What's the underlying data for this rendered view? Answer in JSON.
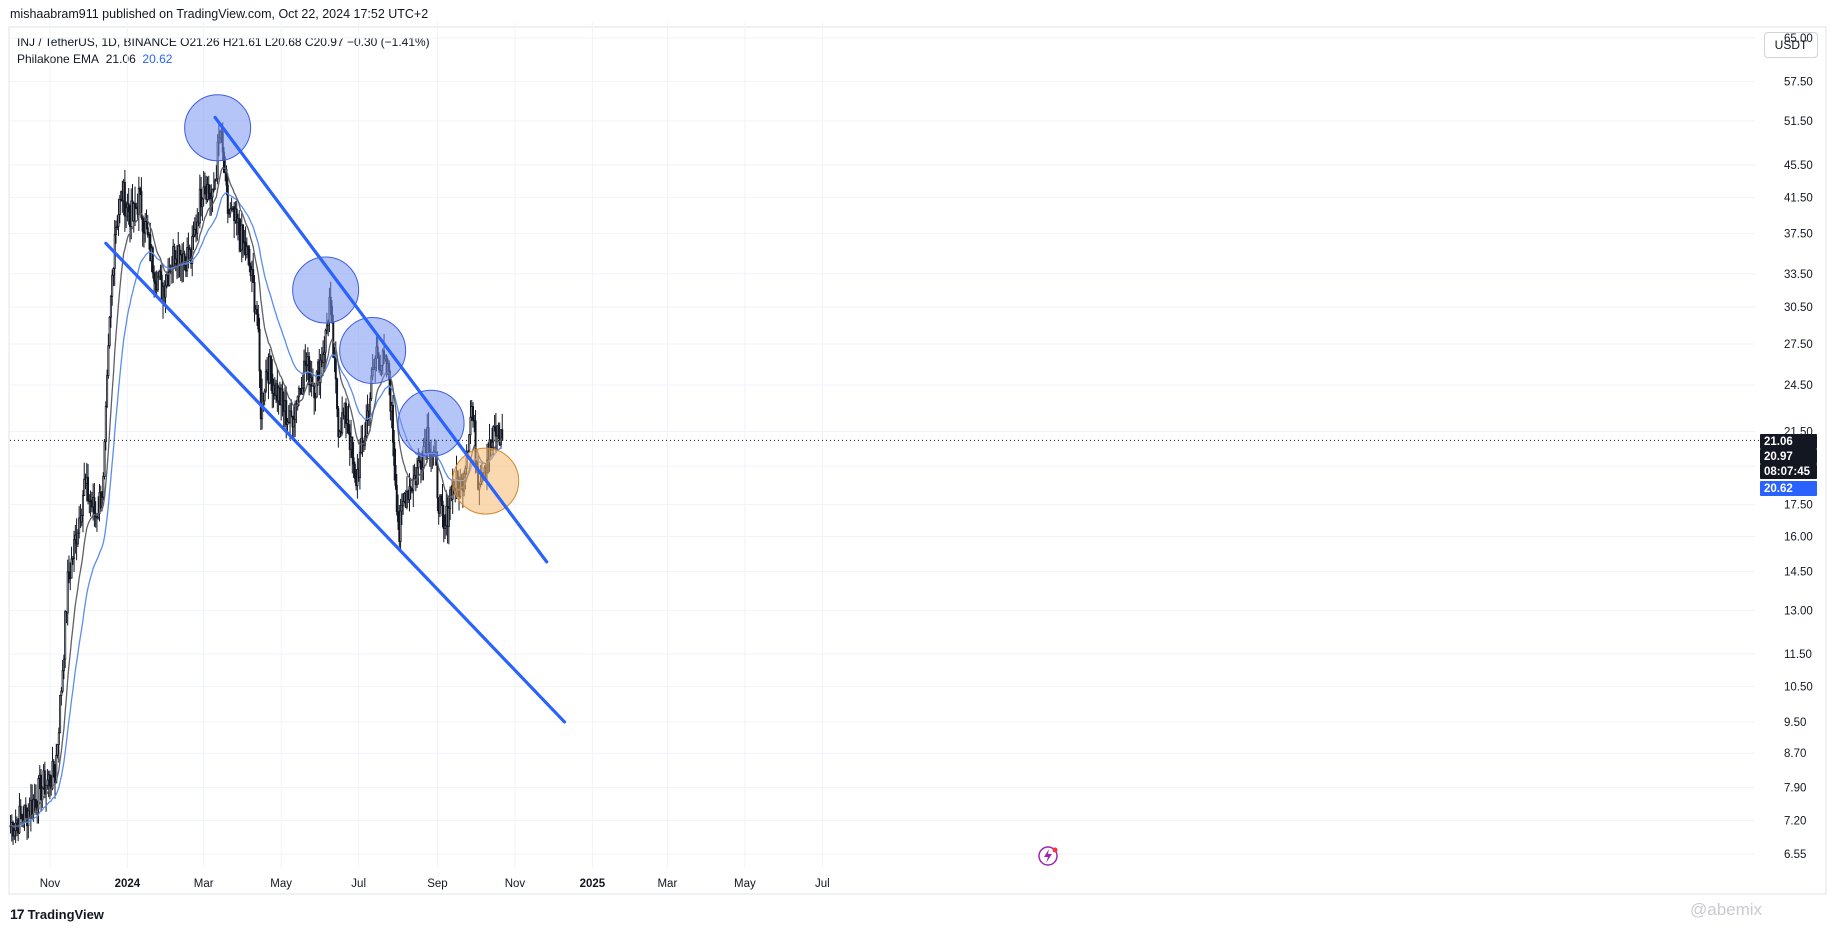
{
  "header": {
    "published": "mishaabram911 published on TradingView.com, Oct 22, 2024 17:52 UTC+2"
  },
  "legend": {
    "symbol_line": "INJ / TetherUS, 1D, BINANCE  O21.26  H21.61  L20.68  C20.97  −0.30 (−1.41%)",
    "indicator_name": "Philakone EMA",
    "ema_fast": "21.06",
    "ema_slow": "20.62"
  },
  "currency_button": "USDT",
  "footer": {
    "logo_text": "TradingView",
    "watermark": "@abemix"
  },
  "colors": {
    "candle": "#131722",
    "ema_fast": "#5d606b",
    "ema_slow": "#5b8def",
    "trendline": "#2962ff",
    "circle_blue": "#7a95f0",
    "circle_orange": "#f5b971",
    "price_label_bg": "#131722",
    "ema_label_bg": "#2962ff"
  },
  "chart_data": {
    "type": "candlestick",
    "x_axis_labels": [
      "Nov",
      "2024",
      "Mar",
      "May",
      "Jul",
      "Sep",
      "Nov",
      "2025",
      "Mar",
      "May",
      "Jul"
    ],
    "y_scale": "log",
    "y_ticks": [
      "65.00",
      "57.50",
      "51.50",
      "45.50",
      "41.50",
      "37.50",
      "33.50",
      "30.50",
      "27.50",
      "24.50",
      "21.50",
      "19.50",
      "17.50",
      "16.00",
      "14.50",
      "13.00",
      "11.50",
      "10.50",
      "9.50",
      "8.70",
      "7.90",
      "7.20",
      "6.55"
    ],
    "ylim": [
      6.3,
      68
    ],
    "price_labels": {
      "ema_fast": "21.06",
      "close": "20.97",
      "countdown": "08:07:45",
      "ema_slow": "20.62"
    },
    "price_path": [
      [
        "2023-10-01",
        7.1
      ],
      [
        "2023-10-15",
        7.4
      ],
      [
        "2023-10-25",
        7.9
      ],
      [
        "2023-11-05",
        8.2
      ],
      [
        "2023-11-10",
        10.5
      ],
      [
        "2023-11-15",
        14.0
      ],
      [
        "2023-11-20",
        15.5
      ],
      [
        "2023-11-28",
        18.5
      ],
      [
        "2023-12-07",
        17.0
      ],
      [
        "2023-12-13",
        18.5
      ],
      [
        "2023-12-18",
        29.0
      ],
      [
        "2023-12-22",
        38.0
      ],
      [
        "2023-12-28",
        42.0
      ],
      [
        "2024-01-05",
        39.0
      ],
      [
        "2024-01-10",
        41.5
      ],
      [
        "2024-01-20",
        35.0
      ],
      [
        "2024-01-28",
        32.0
      ],
      [
        "2024-02-08",
        36.0
      ],
      [
        "2024-02-20",
        35.0
      ],
      [
        "2024-03-01",
        44.0
      ],
      [
        "2024-03-08",
        41.0
      ],
      [
        "2024-03-14",
        50.0
      ],
      [
        "2024-03-20",
        40.0
      ],
      [
        "2024-03-28",
        38.0
      ],
      [
        "2024-04-05",
        35.0
      ],
      [
        "2024-04-12",
        30.0
      ],
      [
        "2024-04-15",
        23.0
      ],
      [
        "2024-04-20",
        26.0
      ],
      [
        "2024-04-28",
        24.0
      ],
      [
        "2024-05-08",
        22.0
      ],
      [
        "2024-05-20",
        26.0
      ],
      [
        "2024-05-28",
        24.5
      ],
      [
        "2024-06-05",
        28.0
      ],
      [
        "2024-06-08",
        31.0
      ],
      [
        "2024-06-15",
        22.0
      ],
      [
        "2024-06-22",
        22.5
      ],
      [
        "2024-06-28",
        18.5
      ],
      [
        "2024-07-05",
        21.0
      ],
      [
        "2024-07-15",
        27.0
      ],
      [
        "2024-07-25",
        25.0
      ],
      [
        "2024-08-02",
        16.0
      ],
      [
        "2024-08-06",
        18.0
      ],
      [
        "2024-08-15",
        19.0
      ],
      [
        "2024-08-24",
        21.5
      ],
      [
        "2024-08-29",
        20.0
      ],
      [
        "2024-09-06",
        16.0
      ],
      [
        "2024-09-12",
        18.5
      ],
      [
        "2024-09-20",
        18.5
      ],
      [
        "2024-09-28",
        23.0
      ],
      [
        "2024-10-03",
        19.0
      ],
      [
        "2024-10-10",
        20.0
      ],
      [
        "2024-10-17",
        21.5
      ],
      [
        "2024-10-22",
        20.97
      ]
    ],
    "trendlines": [
      {
        "from": [
          "2024-03-10",
          52.0
        ],
        "to": [
          "2024-11-26",
          14.9
        ]
      },
      {
        "from": [
          "2023-12-15",
          36.5
        ],
        "to": [
          "2024-12-10",
          9.5
        ]
      }
    ],
    "highlight_circles": [
      {
        "date": "2024-03-12",
        "price": 50.5,
        "color": "blue"
      },
      {
        "date": "2024-06-05",
        "price": 32.0,
        "color": "blue"
      },
      {
        "date": "2024-07-12",
        "price": 27.0,
        "color": "blue"
      },
      {
        "date": "2024-08-27",
        "price": 22.0,
        "color": "blue"
      },
      {
        "date": "2024-10-09",
        "price": 18.7,
        "color": "orange"
      }
    ]
  }
}
